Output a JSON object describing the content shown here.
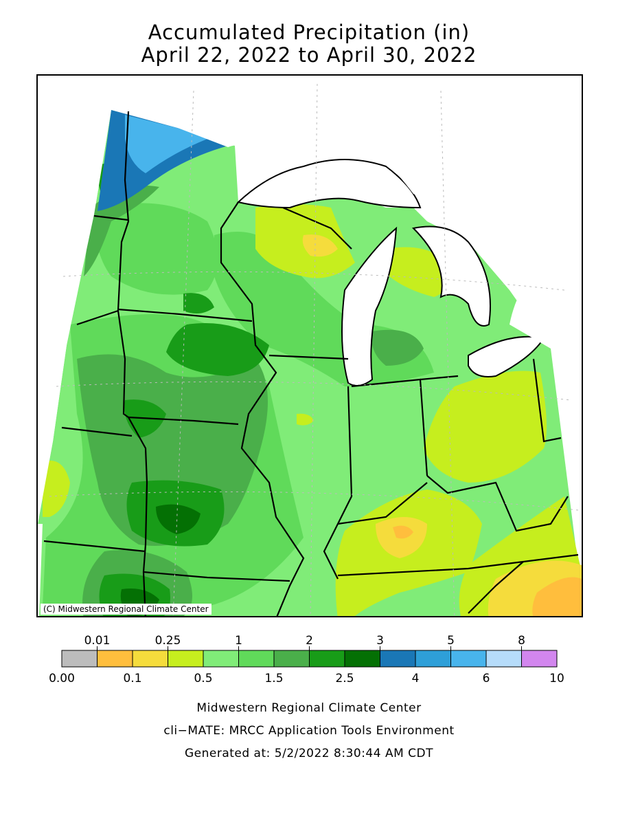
{
  "title": {
    "line1": "Accumulated Precipitation (in)",
    "line2": "April 22, 2022 to April 30, 2022"
  },
  "map": {
    "copyright": "(C) Midwestern Regional Climate Center"
  },
  "legend": {
    "colors": [
      "#bcbcbc",
      "#ffbe3d",
      "#f5dc3c",
      "#c6ee1e",
      "#80ec78",
      "#60da5a",
      "#4aaf4a",
      "#189c18",
      "#047004",
      "#1a77b6",
      "#2e9fd8",
      "#48b4ec",
      "#b6dcfa",
      "#d286ee"
    ],
    "upper_labels": [
      {
        "text": "0.01",
        "index": 1
      },
      {
        "text": "0.25",
        "index": 3
      },
      {
        "text": "1",
        "index": 5
      },
      {
        "text": "2",
        "index": 7
      },
      {
        "text": "3",
        "index": 9
      },
      {
        "text": "5",
        "index": 11
      },
      {
        "text": "8",
        "index": 13
      }
    ],
    "lower_labels": [
      {
        "text": "0.00",
        "index": 0
      },
      {
        "text": "0.1",
        "index": 2
      },
      {
        "text": "0.5",
        "index": 4
      },
      {
        "text": "1.5",
        "index": 6
      },
      {
        "text": "2.5",
        "index": 8
      },
      {
        "text": "4",
        "index": 10
      },
      {
        "text": "6",
        "index": 12
      },
      {
        "text": "10",
        "index": 14
      }
    ]
  },
  "footer": {
    "line1": "Midwestern Regional Climate Center",
    "line2": "cli−MATE: MRCC Application Tools Environment",
    "line3": "Generated at: 5/2/2022 8:30:44 AM CDT"
  }
}
